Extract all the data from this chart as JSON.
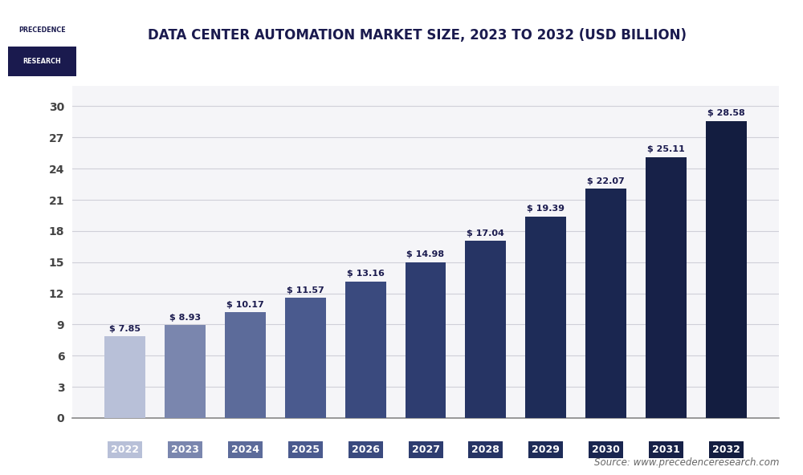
{
  "title": "DATA CENTER AUTOMATION MARKET SIZE, 2023 TO 2032 (USD BILLION)",
  "years": [
    2022,
    2023,
    2024,
    2025,
    2026,
    2027,
    2028,
    2029,
    2030,
    2031,
    2032
  ],
  "values": [
    7.85,
    8.93,
    10.17,
    11.57,
    13.16,
    14.98,
    17.04,
    19.39,
    22.07,
    25.11,
    28.58
  ],
  "bar_colors": [
    "#b8c0d8",
    "#7a86ae",
    "#5c6b9a",
    "#4a5a8e",
    "#3a4a7e",
    "#2e3d70",
    "#263464",
    "#1e2c58",
    "#1a2650",
    "#172148",
    "#131d40"
  ],
  "yticks": [
    0,
    3,
    6,
    9,
    12,
    15,
    18,
    21,
    24,
    27,
    30
  ],
  "ylim": [
    0,
    32
  ],
  "source_text": "Source: www.precedenceresearch.com",
  "title_color": "#1a1a4e",
  "axis_color": "#444444",
  "background_color": "#ffffff",
  "plot_bg_color": "#f5f5f8",
  "grid_color": "#d0d0d8",
  "value_label_color": "#1a1a4e",
  "logo_text_top": "PRECEDENCE",
  "logo_text_bottom": "RESEARCH",
  "logo_box_color": "#1a1a4e"
}
